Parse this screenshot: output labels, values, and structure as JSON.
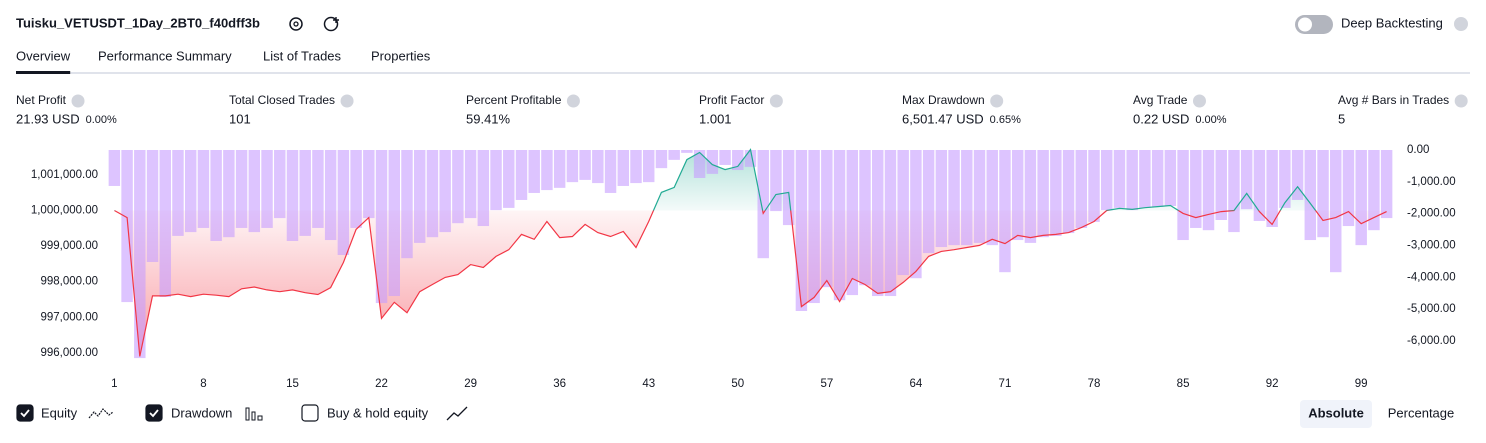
{
  "header": {
    "title": "Tuisku_VETUSDT_1Day_2BT0_f40dff3b",
    "deep_backtesting": "Deep Backtesting"
  },
  "tabs": [
    "Overview",
    "Performance Summary",
    "List of Trades",
    "Properties"
  ],
  "metrics": [
    {
      "label": "Net Profit",
      "value": "21.93 USD",
      "percent": "0.00%",
      "color": "#22ab94"
    },
    {
      "label": "Total Closed Trades",
      "value": "101",
      "color": "#131722"
    },
    {
      "label": "Percent Profitable",
      "value": "59.41%",
      "color": "#22ab94"
    },
    {
      "label": "Profit Factor",
      "value": "1.001",
      "color": "#22ab94"
    },
    {
      "label": "Max Drawdown",
      "value": "6,501.47 USD",
      "percent": "0.65%",
      "color": "#f23645"
    },
    {
      "label": "Avg Trade",
      "value": "0.22 USD",
      "percent": "0.00%",
      "color": "#22ab94"
    },
    {
      "label": "Avg # Bars in Trades",
      "value": "5",
      "color": "#131722"
    }
  ],
  "chart_data": {
    "type": "line",
    "x": [
      1,
      2,
      3,
      4,
      5,
      6,
      7,
      8,
      9,
      10,
      11,
      12,
      13,
      14,
      15,
      16,
      17,
      18,
      19,
      20,
      21,
      22,
      23,
      24,
      25,
      26,
      27,
      28,
      29,
      30,
      31,
      32,
      33,
      34,
      35,
      36,
      37,
      38,
      39,
      40,
      41,
      42,
      43,
      44,
      45,
      46,
      47,
      48,
      49,
      50,
      51,
      52,
      53,
      54,
      55,
      56,
      57,
      58,
      59,
      60,
      61,
      62,
      63,
      64,
      65,
      66,
      67,
      68,
      69,
      70,
      71,
      72,
      73,
      74,
      75,
      76,
      77,
      78,
      79,
      80,
      81,
      82,
      83,
      84,
      85,
      86,
      87,
      88,
      89,
      90,
      91,
      92,
      93,
      94,
      95,
      96,
      97,
      98,
      99,
      100,
      101
    ],
    "xlim": [
      0.5,
      101.5
    ],
    "xticks": [
      1,
      8,
      15,
      22,
      29,
      36,
      43,
      50,
      57,
      64,
      71,
      78,
      85,
      92,
      99
    ],
    "ylim": [
      995800,
      1001700
    ],
    "yticks": [
      {
        "value": 996000,
        "label": "996,000.00"
      },
      {
        "value": 997000,
        "label": "997,000.00"
      },
      {
        "value": 998000,
        "label": "998,000.00"
      },
      {
        "value": 999000,
        "label": "999,000.00"
      },
      {
        "value": 1000000,
        "label": "1,000,000.00"
      },
      {
        "value": 1001000,
        "label": "1,001,000.00"
      }
    ],
    "y2lim": [
      -6600,
      0
    ],
    "y2ticks": [
      {
        "value": 0,
        "label": "0.00"
      },
      {
        "value": -1000,
        "label": "-1,000.00"
      },
      {
        "value": -2000,
        "label": "-2,000.00"
      },
      {
        "value": -3000,
        "label": "-3,000.00"
      },
      {
        "value": -4000,
        "label": "-4,000.00"
      },
      {
        "value": -5000,
        "label": "-5,000.00"
      },
      {
        "value": -6000,
        "label": "-6,000.00"
      }
    ],
    "baseline": 1000000,
    "grid": false,
    "series": [
      {
        "name": "Equity",
        "color": "#f23645",
        "color_above": "#22ab94",
        "values": [
          1000000,
          999800,
          995900,
          997600,
          997600,
          997650,
          997580,
          997650,
          997620,
          997580,
          997800,
          997850,
          997770,
          997720,
          997770,
          997690,
          997640,
          997830,
          998540,
          999470,
          999800,
          996970,
          997420,
          997130,
          997720,
          997920,
          998120,
          998200,
          998480,
          998400,
          998710,
          998900,
          999330,
          999190,
          999690,
          999240,
          999270,
          999610,
          999380,
          999270,
          999410,
          998960,
          999690,
          1000510,
          1000650,
          1001430,
          1001630,
          1001290,
          1001150,
          1001240,
          1001710,
          999920,
          1000450,
          1000510,
          997300,
          997560,
          998030,
          997440,
          998090,
          997920,
          997670,
          997720,
          997980,
          998290,
          998710,
          998850,
          998900,
          998960,
          999020,
          999190,
          999070,
          999300,
          999240,
          999300,
          999330,
          999380,
          999520,
          999690,
          1000000,
          1000060,
          1000030,
          1000080,
          1000110,
          1000140,
          999920,
          999800,
          999890,
          999970,
          1000000,
          1000480,
          999970,
          999610,
          1000220,
          1000670,
          1000200,
          999720,
          999800,
          999970,
          999630,
          999800,
          999970
        ]
      },
      {
        "name": "Drawdown",
        "color": "#c69cff",
        "axis": "y2",
        "values": [
          -1130,
          -4780,
          -6540,
          -3520,
          -4620,
          -2700,
          -2580,
          -2450,
          -2860,
          -2740,
          -2450,
          -2580,
          -2450,
          -2140,
          -2860,
          -2700,
          -2450,
          -2830,
          -3300,
          -2450,
          -2140,
          -4810,
          -4590,
          -3400,
          -2920,
          -2740,
          -2580,
          -2300,
          -2140,
          -2390,
          -1890,
          -1820,
          -1570,
          -1350,
          -1260,
          -1190,
          -1010,
          -940,
          -1040,
          -1350,
          -1130,
          -1040,
          -1010,
          -570,
          -310,
          -90,
          -880,
          -750,
          -470,
          -630,
          -530,
          -3400,
          -1920,
          -2360,
          -5060,
          -4810,
          -4310,
          -4720,
          -4560,
          -4250,
          -4590,
          -4590,
          -3930,
          -4030,
          -3240,
          -3050,
          -2990,
          -2990,
          -2920,
          -2990,
          -3840,
          -2830,
          -2920,
          -2740,
          -2700,
          -2610,
          -2450,
          -2260,
          -1890,
          -1820,
          -1890,
          -1820,
          -1790,
          -1760,
          -2830,
          -2450,
          -2520,
          -2200,
          -2580,
          -1860,
          -2230,
          -2420,
          -1820,
          -1570,
          -2830,
          -2740,
          -3840,
          -2390,
          -2990,
          -2520,
          -2140
        ]
      }
    ]
  },
  "legend": {
    "buy_hold": "Buy & hold equity"
  },
  "modes": [
    "Absolute",
    "Percentage"
  ]
}
